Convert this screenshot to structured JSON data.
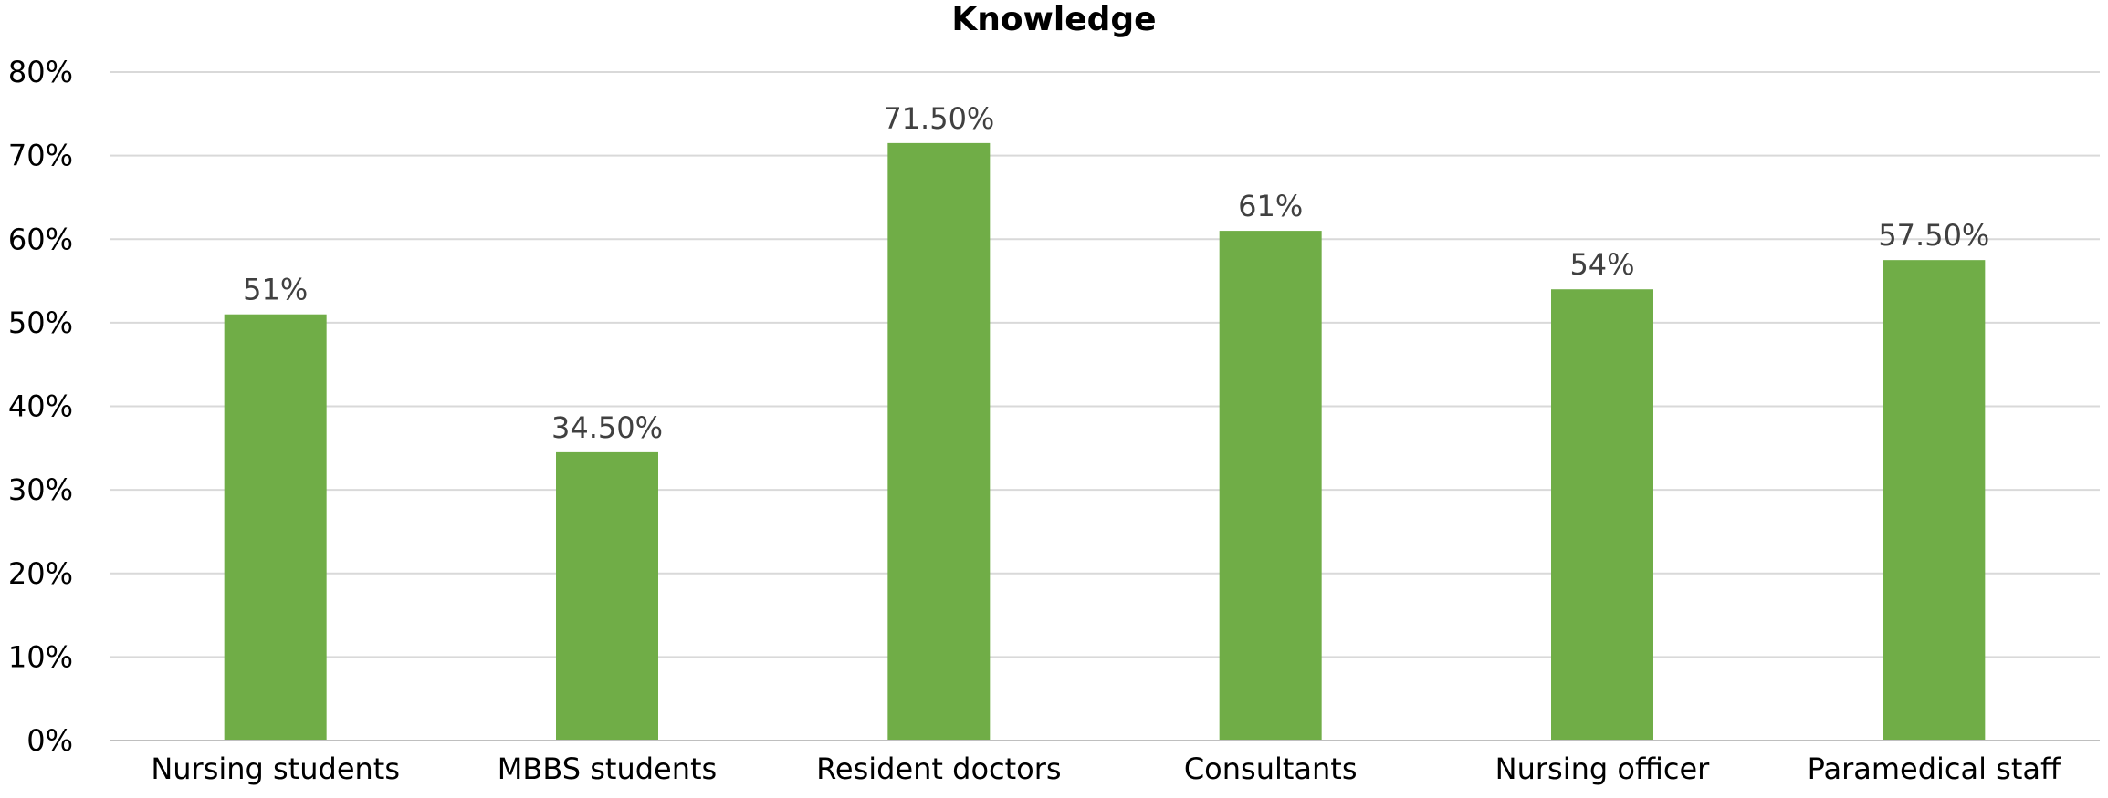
{
  "chart_data": {
    "type": "bar",
    "title": "Knowledge",
    "xlabel": "",
    "ylabel": "",
    "categories": [
      "Nursing students",
      "MBBS students",
      "Resident doctors",
      "Consultants",
      "Nursing officer",
      "Paramedical staff"
    ],
    "values": [
      51,
      34.5,
      71.5,
      61,
      54,
      57.5
    ],
    "data_labels": [
      "51%",
      "34.50%",
      "71.50%",
      "61%",
      "54%",
      "57.50%"
    ],
    "ylim": [
      0,
      80
    ],
    "yticks": [
      0,
      10,
      20,
      30,
      40,
      50,
      60,
      70,
      80
    ],
    "ytick_labels": [
      "0%",
      "10%",
      "20%",
      "30%",
      "40%",
      "50%",
      "60%",
      "70%",
      "80%"
    ],
    "grid": true,
    "legend": "none",
    "colors": {
      "bar": "#70ad47",
      "grid": "#d9d9d9",
      "axis": "#bfbfbf",
      "data_label": "#404040"
    }
  }
}
